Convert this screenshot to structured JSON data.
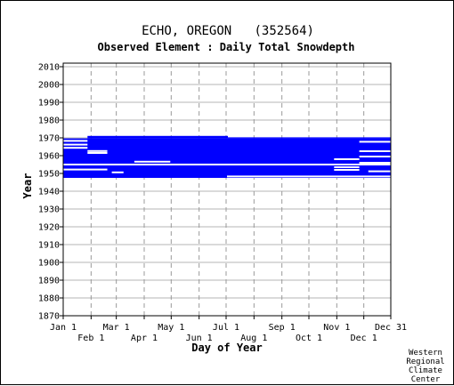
{
  "chart_data": {
    "type": "heatmap",
    "title": "ECHO, OREGON   (352564)",
    "subtitle": "Observed Element : Daily Total Snowdepth",
    "xlabel": "Day of Year",
    "ylabel": "Year",
    "xlim": [
      1,
      365
    ],
    "ylim": [
      1870,
      2012
    ],
    "y_ticks": [
      1870,
      1880,
      1890,
      1900,
      1910,
      1920,
      1930,
      1940,
      1950,
      1960,
      1970,
      1980,
      1990,
      2000,
      2010
    ],
    "x_ticks_top_row": [
      {
        "label": "Jan 1",
        "day": 1
      },
      {
        "label": "Mar 1",
        "day": 60
      },
      {
        "label": "May 1",
        "day": 121
      },
      {
        "label": "Jul 1",
        "day": 182
      },
      {
        "label": "Sep 1",
        "day": 244
      },
      {
        "label": "Nov 1",
        "day": 305
      },
      {
        "label": "Dec 31",
        "day": 365
      }
    ],
    "x_ticks_bottom_row": [
      {
        "label": "Feb 1",
        "day": 32
      },
      {
        "label": "Apr 1",
        "day": 91
      },
      {
        "label": "Jun 1",
        "day": 152
      },
      {
        "label": "Aug 1",
        "day": 213
      },
      {
        "label": "Oct 1",
        "day": 274
      },
      {
        "label": "Dec 1",
        "day": 335
      }
    ],
    "grid": true,
    "series_color": "#0000ff",
    "coverage_blocks": [
      {
        "day_start": 1,
        "day_end": 365,
        "year_start": 1947.5,
        "year_end": 1969.7
      },
      {
        "day_start": 28,
        "day_end": 184,
        "year_start": 1969.7,
        "year_end": 1971.1
      },
      {
        "day_start": 184,
        "day_end": 365,
        "year_start": 1969.7,
        "year_end": 1970.3
      }
    ],
    "gaps": [
      {
        "day_start": 1,
        "day_end": 28,
        "year": 1968.3
      },
      {
        "day_start": 1,
        "day_end": 28,
        "year": 1966.2
      },
      {
        "day_start": 1,
        "day_end": 28,
        "year": 1964.4
      },
      {
        "day_start": 28,
        "day_end": 50,
        "year": 1962.6
      },
      {
        "day_start": 28,
        "day_end": 50,
        "year": 1961.5
      },
      {
        "day_start": 80,
        "day_end": 120,
        "year": 1956.6
      },
      {
        "day_start": 1,
        "day_end": 365,
        "year": 1955.0
      },
      {
        "day_start": 1,
        "day_end": 50,
        "year": 1952.2
      },
      {
        "day_start": 55,
        "day_end": 68,
        "year": 1950.6
      },
      {
        "day_start": 302,
        "day_end": 330,
        "year": 1958.0
      },
      {
        "day_start": 302,
        "day_end": 330,
        "year": 1953.5
      },
      {
        "day_start": 302,
        "day_end": 330,
        "year": 1952.0
      },
      {
        "day_start": 330,
        "day_end": 365,
        "year": 1967.8
      },
      {
        "day_start": 330,
        "day_end": 365,
        "year": 1962.5
      },
      {
        "day_start": 330,
        "day_end": 365,
        "year": 1959.5
      },
      {
        "day_start": 330,
        "day_end": 365,
        "year": 1956.0
      },
      {
        "day_start": 340,
        "day_end": 365,
        "year": 1951.2
      },
      {
        "day_start": 183,
        "day_end": 365,
        "year": 1948.3
      }
    ],
    "credit_lines": [
      "Western",
      "Regional",
      "Climate",
      "Center"
    ]
  }
}
